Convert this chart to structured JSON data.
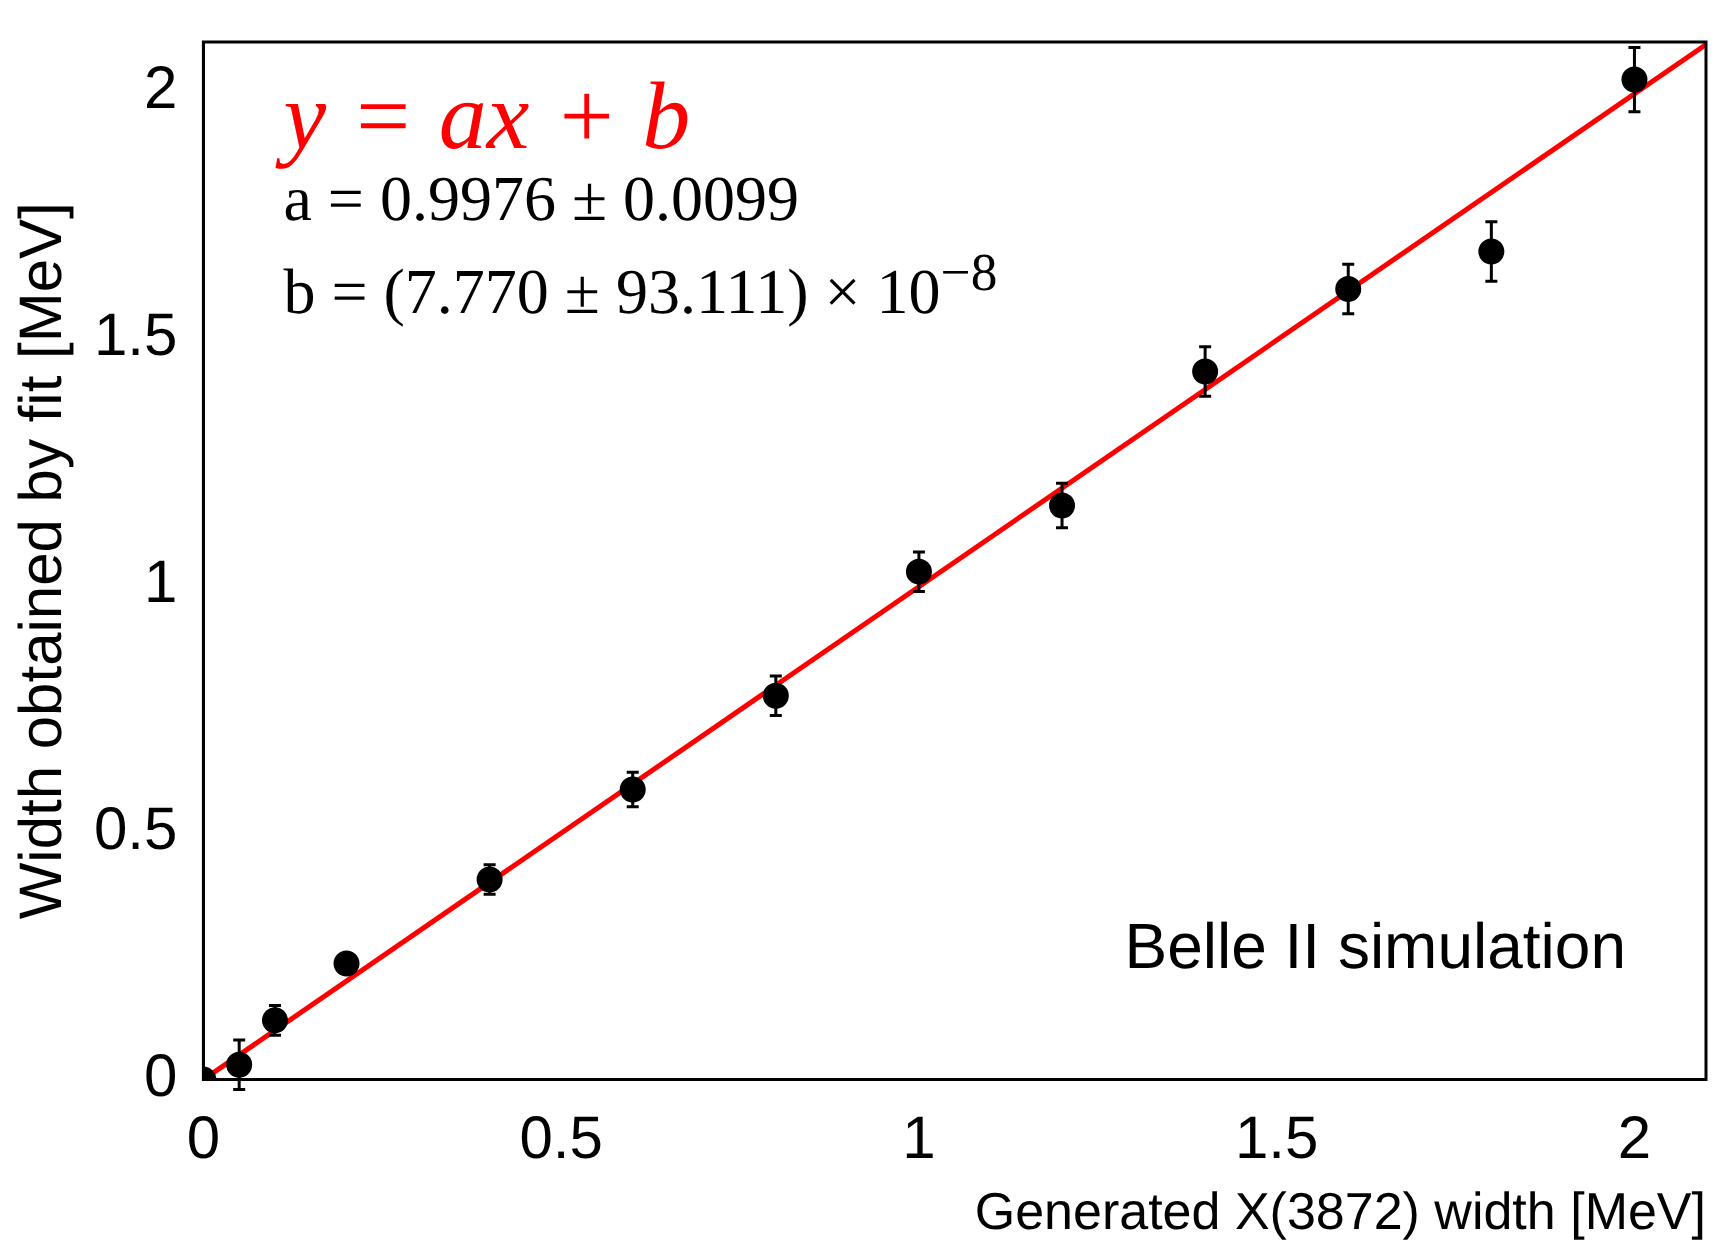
{
  "chart_data": {
    "type": "scatter",
    "xlabel": "Generated X(3872) width [MeV]",
    "ylabel": "Width obtained by fit [MeV]",
    "xlim": [
      0,
      2.1
    ],
    "ylim": [
      0,
      2.1
    ],
    "xticks": [
      0,
      0.5,
      1,
      1.5,
      2
    ],
    "yticks": [
      0,
      0.5,
      1,
      1.5,
      2
    ],
    "grid": false,
    "legend": false,
    "series": [
      {
        "marker": "circle",
        "color": "#000000",
        "x": [
          0,
          0.05,
          0.1,
          0.2,
          0.4,
          0.6,
          0.8,
          1.0,
          1.2,
          1.4,
          1.6,
          1.8,
          2.0
        ],
        "values": [
          0,
          0.03,
          0.12,
          0.235,
          0.405,
          0.587,
          0.777,
          1.028,
          1.162,
          1.433,
          1.6,
          1.676,
          2.024
        ],
        "errors": [
          null,
          0.05,
          0.03,
          0.02,
          0.03,
          0.035,
          0.04,
          0.04,
          0.045,
          0.05,
          0.05,
          0.06,
          0.065
        ]
      },
      {
        "type": "line",
        "marker": "none",
        "color": "#ff0000",
        "x": [
          0,
          2.1
        ],
        "values": [
          0,
          2.095
        ]
      }
    ],
    "annotations": [
      "y = ax + b",
      "a = 0.9976 ± 0.0099",
      "b = (7.770 ± 93.111) × 10$^{−8}$",
      "Belle II simulation"
    ]
  }
}
